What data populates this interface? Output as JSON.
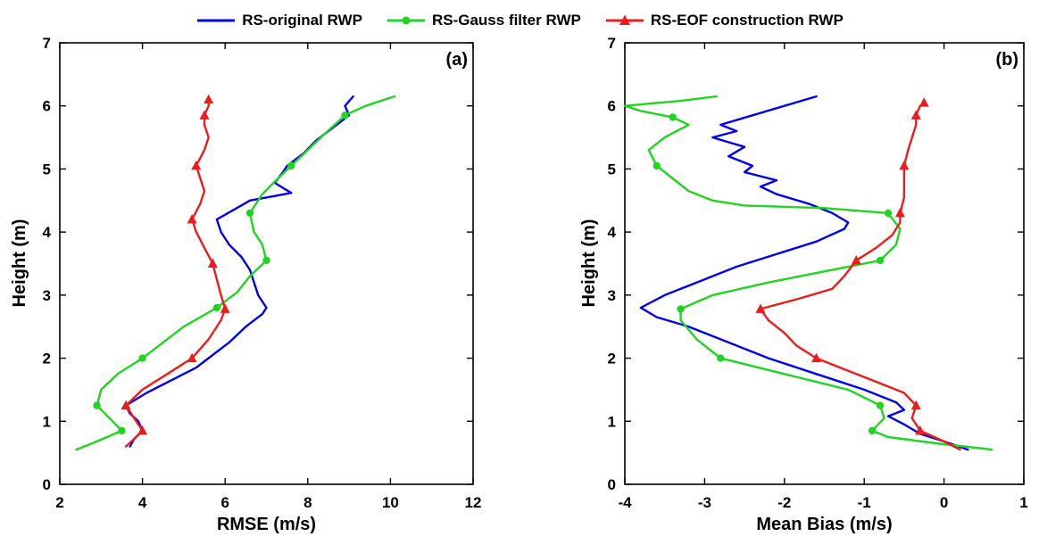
{
  "figure": {
    "background": "#ffffff",
    "legend": [
      {
        "label": "RS-original RWP",
        "color": "#0000f0",
        "marker": "none"
      },
      {
        "label": "RS-Gauss filter RWP",
        "color": "#21d421",
        "marker": "circle"
      },
      {
        "label": "RS-EOF construction RWP",
        "color": "#eb1c1c",
        "marker": "triangle"
      }
    ]
  },
  "chart_data": [
    {
      "type": "line",
      "panel_label": "(a)",
      "xlabel": "RMSE (m/s)",
      "ylabel": "Height (m)",
      "xlim": [
        2,
        12
      ],
      "ylim": [
        0,
        7
      ],
      "xticks": [
        2,
        4,
        6,
        8,
        10,
        12
      ],
      "yticks": [
        0,
        1,
        2,
        3,
        4,
        5,
        6,
        7
      ],
      "grid": false,
      "legend_position": "top-outside",
      "series": [
        {
          "name": "RS-original RWP",
          "color": "#0000f0",
          "marker": "none",
          "points": [
            [
              3.7,
              0.6
            ],
            [
              3.8,
              0.72
            ],
            [
              4.0,
              0.85
            ],
            [
              3.9,
              1.0
            ],
            [
              3.7,
              1.12
            ],
            [
              3.6,
              1.25
            ],
            [
              4.1,
              1.45
            ],
            [
              4.7,
              1.65
            ],
            [
              5.3,
              1.85
            ],
            [
              5.7,
              2.05
            ],
            [
              6.1,
              2.25
            ],
            [
              6.5,
              2.5
            ],
            [
              6.9,
              2.7
            ],
            [
              7.0,
              2.8
            ],
            [
              6.8,
              3.0
            ],
            [
              6.7,
              3.2
            ],
            [
              6.6,
              3.4
            ],
            [
              6.4,
              3.6
            ],
            [
              6.1,
              3.8
            ],
            [
              5.9,
              4.0
            ],
            [
              5.8,
              4.2
            ],
            [
              6.2,
              4.35
            ],
            [
              6.6,
              4.5
            ],
            [
              7.6,
              4.62
            ],
            [
              7.2,
              4.78
            ],
            [
              7.4,
              4.95
            ],
            [
              7.5,
              5.05
            ],
            [
              7.9,
              5.25
            ],
            [
              8.2,
              5.45
            ],
            [
              8.5,
              5.6
            ],
            [
              8.8,
              5.75
            ],
            [
              9.0,
              5.85
            ],
            [
              8.9,
              6.0
            ],
            [
              9.1,
              6.15
            ]
          ],
          "markers": []
        },
        {
          "name": "RS-Gauss filter RWP",
          "color": "#21d421",
          "marker": "circle",
          "points": [
            [
              2.4,
              0.55
            ],
            [
              2.9,
              0.68
            ],
            [
              3.5,
              0.85
            ],
            [
              3.2,
              1.05
            ],
            [
              2.9,
              1.25
            ],
            [
              3.0,
              1.5
            ],
            [
              3.4,
              1.75
            ],
            [
              4.0,
              2.0
            ],
            [
              4.5,
              2.25
            ],
            [
              5.0,
              2.5
            ],
            [
              5.8,
              2.8
            ],
            [
              6.3,
              3.05
            ],
            [
              6.6,
              3.3
            ],
            [
              7.0,
              3.55
            ],
            [
              6.9,
              3.8
            ],
            [
              6.7,
              4.0
            ],
            [
              6.6,
              4.3
            ],
            [
              6.9,
              4.6
            ],
            [
              7.2,
              4.8
            ],
            [
              7.6,
              5.05
            ],
            [
              8.0,
              5.3
            ],
            [
              8.4,
              5.55
            ],
            [
              8.9,
              5.85
            ],
            [
              9.4,
              6.0
            ],
            [
              10.1,
              6.15
            ]
          ],
          "markers": [
            [
              3.5,
              0.85
            ],
            [
              2.9,
              1.25
            ],
            [
              4.0,
              2.0
            ],
            [
              5.8,
              2.8
            ],
            [
              7.0,
              3.55
            ],
            [
              6.6,
              4.3
            ],
            [
              7.6,
              5.05
            ],
            [
              8.9,
              5.85
            ]
          ]
        },
        {
          "name": "RS-EOF construction RWP",
          "color": "#eb1c1c",
          "marker": "triangle",
          "points": [
            [
              3.6,
              0.6
            ],
            [
              3.8,
              0.72
            ],
            [
              4.0,
              0.85
            ],
            [
              3.8,
              1.05
            ],
            [
              3.6,
              1.25
            ],
            [
              4.0,
              1.5
            ],
            [
              4.6,
              1.75
            ],
            [
              5.2,
              2.0
            ],
            [
              5.6,
              2.3
            ],
            [
              5.9,
              2.6
            ],
            [
              6.0,
              2.78
            ],
            [
              5.9,
              3.0
            ],
            [
              5.8,
              3.25
            ],
            [
              5.7,
              3.5
            ],
            [
              5.5,
              3.75
            ],
            [
              5.3,
              4.0
            ],
            [
              5.2,
              4.2
            ],
            [
              5.4,
              4.45
            ],
            [
              5.5,
              4.65
            ],
            [
              5.4,
              4.85
            ],
            [
              5.3,
              5.05
            ],
            [
              5.5,
              5.3
            ],
            [
              5.6,
              5.5
            ],
            [
              5.5,
              5.7
            ],
            [
              5.5,
              5.85
            ],
            [
              5.6,
              6.0
            ],
            [
              5.6,
              6.1
            ]
          ],
          "markers": [
            [
              4.0,
              0.85
            ],
            [
              3.6,
              1.25
            ],
            [
              5.2,
              2.0
            ],
            [
              6.0,
              2.78
            ],
            [
              5.7,
              3.5
            ],
            [
              5.2,
              4.2
            ],
            [
              5.3,
              5.05
            ],
            [
              5.5,
              5.85
            ],
            [
              5.6,
              6.1
            ]
          ]
        }
      ]
    },
    {
      "type": "line",
      "panel_label": "(b)",
      "xlabel": "Mean Bias (m/s)",
      "ylabel": "Height (m)",
      "xlim": [
        -4,
        1
      ],
      "ylim": [
        0,
        7
      ],
      "xticks": [
        -4,
        -3,
        -2,
        -1,
        0,
        1
      ],
      "yticks": [
        0,
        1,
        2,
        3,
        4,
        5,
        6,
        7
      ],
      "grid": false,
      "legend_position": "top-outside",
      "series": [
        {
          "name": "RS-original RWP",
          "color": "#0000f0",
          "marker": "none",
          "points": [
            [
              0.3,
              0.55
            ],
            [
              0.0,
              0.68
            ],
            [
              -0.3,
              0.8
            ],
            [
              -0.5,
              0.95
            ],
            [
              -0.7,
              1.08
            ],
            [
              -0.5,
              1.18
            ],
            [
              -0.6,
              1.3
            ],
            [
              -1.0,
              1.5
            ],
            [
              -1.6,
              1.75
            ],
            [
              -2.2,
              2.0
            ],
            [
              -2.7,
              2.25
            ],
            [
              -3.2,
              2.5
            ],
            [
              -3.6,
              2.65
            ],
            [
              -3.8,
              2.8
            ],
            [
              -3.5,
              3.0
            ],
            [
              -3.1,
              3.2
            ],
            [
              -2.6,
              3.45
            ],
            [
              -2.1,
              3.65
            ],
            [
              -1.6,
              3.85
            ],
            [
              -1.25,
              4.05
            ],
            [
              -1.2,
              4.15
            ],
            [
              -1.4,
              4.3
            ],
            [
              -1.7,
              4.45
            ],
            [
              -2.1,
              4.6
            ],
            [
              -2.3,
              4.72
            ],
            [
              -2.1,
              4.82
            ],
            [
              -2.5,
              4.95
            ],
            [
              -2.4,
              5.05
            ],
            [
              -2.7,
              5.2
            ],
            [
              -2.5,
              5.35
            ],
            [
              -2.9,
              5.5
            ],
            [
              -2.6,
              5.6
            ],
            [
              -2.8,
              5.7
            ],
            [
              -2.4,
              5.85
            ],
            [
              -2.0,
              6.0
            ],
            [
              -1.6,
              6.15
            ]
          ],
          "markers": []
        },
        {
          "name": "RS-Gauss filter RWP",
          "color": "#21d421",
          "marker": "circle",
          "points": [
            [
              0.6,
              0.55
            ],
            [
              -0.1,
              0.65
            ],
            [
              -0.7,
              0.75
            ],
            [
              -0.9,
              0.85
            ],
            [
              -0.75,
              1.05
            ],
            [
              -0.8,
              1.25
            ],
            [
              -1.2,
              1.5
            ],
            [
              -2.0,
              1.75
            ],
            [
              -2.8,
              2.0
            ],
            [
              -3.1,
              2.3
            ],
            [
              -3.3,
              2.6
            ],
            [
              -3.3,
              2.78
            ],
            [
              -2.9,
              3.0
            ],
            [
              -2.2,
              3.2
            ],
            [
              -1.4,
              3.4
            ],
            [
              -0.8,
              3.55
            ],
            [
              -0.6,
              3.8
            ],
            [
              -0.55,
              4.05
            ],
            [
              -0.7,
              4.3
            ],
            [
              -1.5,
              4.38
            ],
            [
              -2.5,
              4.42
            ],
            [
              -2.9,
              4.5
            ],
            [
              -3.2,
              4.65
            ],
            [
              -3.4,
              4.85
            ],
            [
              -3.6,
              5.05
            ],
            [
              -3.7,
              5.3
            ],
            [
              -3.5,
              5.5
            ],
            [
              -3.2,
              5.7
            ],
            [
              -3.4,
              5.82
            ],
            [
              -3.8,
              5.92
            ],
            [
              -4.0,
              6.0
            ],
            [
              -3.3,
              6.08
            ],
            [
              -2.85,
              6.15
            ]
          ],
          "markers": [
            [
              -0.9,
              0.85
            ],
            [
              -0.8,
              1.25
            ],
            [
              -2.8,
              2.0
            ],
            [
              -3.3,
              2.78
            ],
            [
              -0.8,
              3.55
            ],
            [
              -0.7,
              4.3
            ],
            [
              -3.6,
              5.05
            ],
            [
              -3.4,
              5.82
            ]
          ]
        },
        {
          "name": "RS-EOF construction RWP",
          "color": "#eb1c1c",
          "marker": "triangle",
          "points": [
            [
              0.2,
              0.55
            ],
            [
              0.0,
              0.68
            ],
            [
              -0.3,
              0.85
            ],
            [
              -0.4,
              1.05
            ],
            [
              -0.35,
              1.25
            ],
            [
              -0.5,
              1.45
            ],
            [
              -0.9,
              1.65
            ],
            [
              -1.3,
              1.85
            ],
            [
              -1.6,
              2.0
            ],
            [
              -1.85,
              2.2
            ],
            [
              -2.0,
              2.4
            ],
            [
              -2.2,
              2.6
            ],
            [
              -2.3,
              2.78
            ],
            [
              -1.8,
              2.95
            ],
            [
              -1.4,
              3.1
            ],
            [
              -1.25,
              3.3
            ],
            [
              -1.1,
              3.55
            ],
            [
              -0.85,
              3.75
            ],
            [
              -0.65,
              3.95
            ],
            [
              -0.55,
              4.15
            ],
            [
              -0.55,
              4.3
            ],
            [
              -0.5,
              4.55
            ],
            [
              -0.5,
              4.8
            ],
            [
              -0.5,
              5.05
            ],
            [
              -0.45,
              5.3
            ],
            [
              -0.4,
              5.5
            ],
            [
              -0.35,
              5.7
            ],
            [
              -0.35,
              5.85
            ],
            [
              -0.3,
              6.0
            ],
            [
              -0.25,
              6.05
            ]
          ],
          "markers": [
            [
              -0.3,
              0.85
            ],
            [
              -0.35,
              1.25
            ],
            [
              -1.6,
              2.0
            ],
            [
              -2.3,
              2.78
            ],
            [
              -1.1,
              3.55
            ],
            [
              -0.55,
              4.3
            ],
            [
              -0.5,
              5.05
            ],
            [
              -0.35,
              5.85
            ],
            [
              -0.25,
              6.05
            ]
          ]
        }
      ]
    }
  ]
}
